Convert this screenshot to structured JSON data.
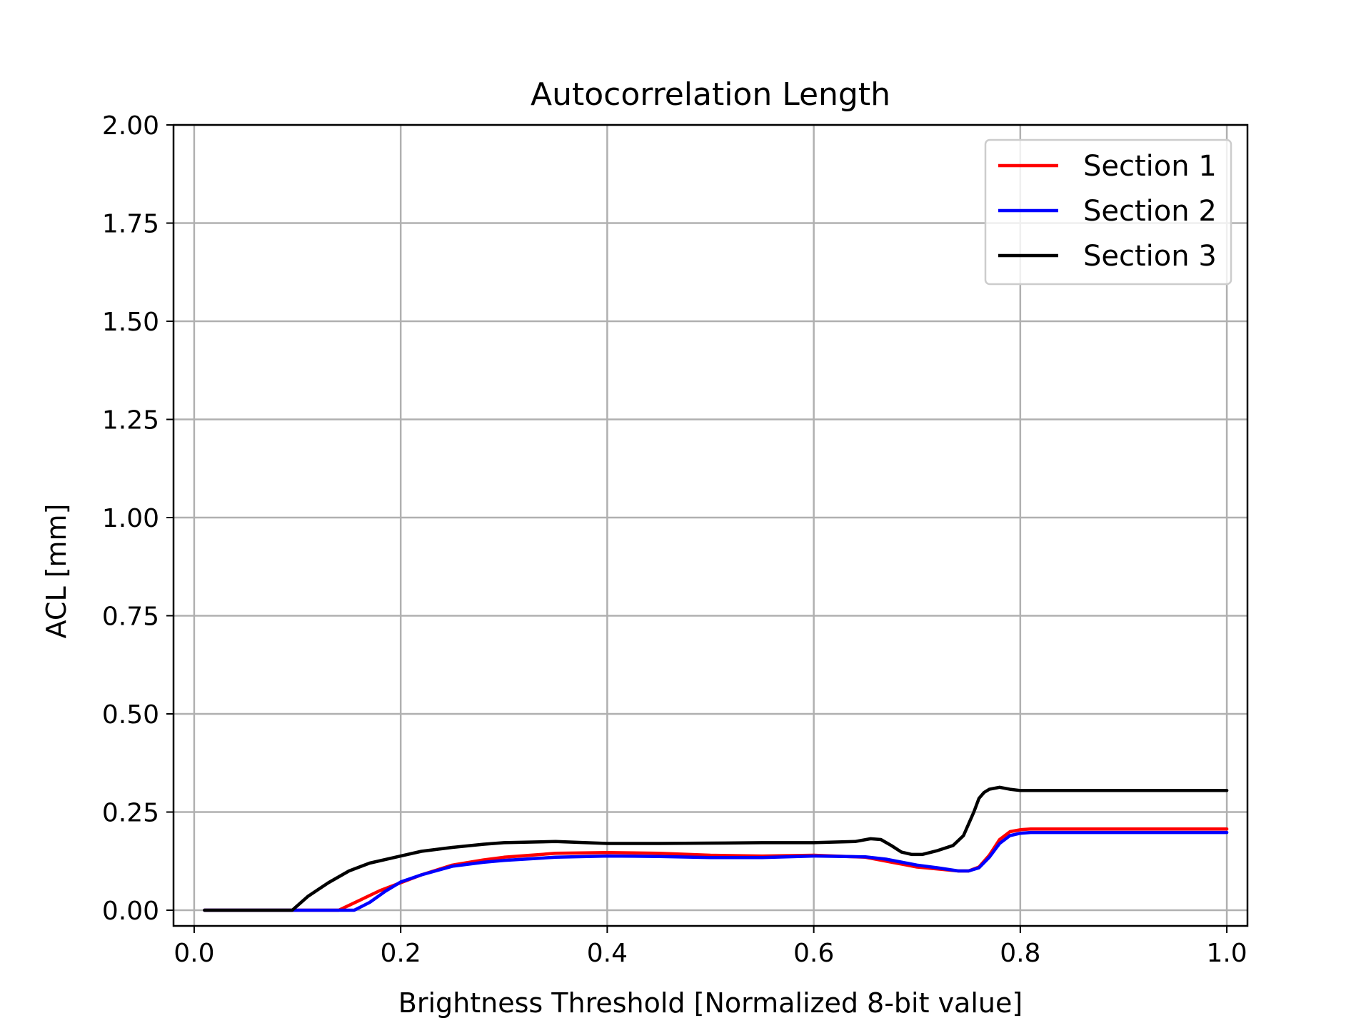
{
  "chart_data": {
    "type": "line",
    "title": "Autocorrelation Length",
    "xlabel": "Brightness Threshold [Normalized 8-bit value]",
    "ylabel": "ACL [mm]",
    "xlim": [
      -0.02,
      1.02
    ],
    "ylim": [
      -0.04,
      2.0
    ],
    "xticks": [
      {
        "value": 0.0,
        "label": "0.0"
      },
      {
        "value": 0.2,
        "label": "0.2"
      },
      {
        "value": 0.4,
        "label": "0.4"
      },
      {
        "value": 0.6,
        "label": "0.6"
      },
      {
        "value": 0.8,
        "label": "0.8"
      },
      {
        "value": 1.0,
        "label": "1.0"
      }
    ],
    "yticks": [
      {
        "value": 0.0,
        "label": "0.00"
      },
      {
        "value": 0.25,
        "label": "0.25"
      },
      {
        "value": 0.5,
        "label": "0.50"
      },
      {
        "value": 0.75,
        "label": "0.75"
      },
      {
        "value": 1.0,
        "label": "1.00"
      },
      {
        "value": 1.25,
        "label": "1.25"
      },
      {
        "value": 1.5,
        "label": "1.50"
      },
      {
        "value": 1.75,
        "label": "1.75"
      },
      {
        "value": 2.0,
        "label": "2.00"
      }
    ],
    "grid": true,
    "legend_position": "top-right",
    "series": [
      {
        "name": "Section 1",
        "color": "#ff0000",
        "x": [
          0.01,
          0.14,
          0.16,
          0.18,
          0.2,
          0.22,
          0.25,
          0.28,
          0.3,
          0.35,
          0.4,
          0.45,
          0.5,
          0.55,
          0.6,
          0.65,
          0.68,
          0.7,
          0.72,
          0.74,
          0.75,
          0.76,
          0.77,
          0.78,
          0.79,
          0.8,
          0.81,
          0.85,
          0.9,
          0.95,
          1.0
        ],
        "y": [
          0.0,
          0.0,
          0.025,
          0.05,
          0.07,
          0.09,
          0.115,
          0.128,
          0.135,
          0.145,
          0.147,
          0.145,
          0.14,
          0.138,
          0.14,
          0.135,
          0.12,
          0.11,
          0.105,
          0.1,
          0.1,
          0.11,
          0.14,
          0.18,
          0.2,
          0.205,
          0.207,
          0.207,
          0.207,
          0.207,
          0.207
        ]
      },
      {
        "name": "Section 2",
        "color": "#0000ff",
        "x": [
          0.01,
          0.155,
          0.17,
          0.185,
          0.2,
          0.22,
          0.25,
          0.28,
          0.3,
          0.35,
          0.4,
          0.45,
          0.5,
          0.55,
          0.6,
          0.65,
          0.67,
          0.7,
          0.72,
          0.74,
          0.75,
          0.76,
          0.77,
          0.78,
          0.79,
          0.8,
          0.81,
          0.85,
          0.9,
          0.95,
          1.0
        ],
        "y": [
          0.0,
          0.0,
          0.02,
          0.048,
          0.072,
          0.09,
          0.112,
          0.122,
          0.127,
          0.135,
          0.138,
          0.137,
          0.134,
          0.134,
          0.138,
          0.136,
          0.13,
          0.115,
          0.108,
          0.1,
          0.1,
          0.108,
          0.135,
          0.17,
          0.19,
          0.196,
          0.198,
          0.198,
          0.198,
          0.198,
          0.198
        ]
      },
      {
        "name": "Section 3",
        "color": "#000000",
        "x": [
          0.01,
          0.095,
          0.11,
          0.13,
          0.15,
          0.17,
          0.2,
          0.22,
          0.25,
          0.28,
          0.3,
          0.35,
          0.4,
          0.45,
          0.5,
          0.55,
          0.6,
          0.64,
          0.655,
          0.665,
          0.675,
          0.685,
          0.695,
          0.705,
          0.72,
          0.735,
          0.745,
          0.755,
          0.76,
          0.765,
          0.77,
          0.78,
          0.79,
          0.8,
          0.85,
          0.9,
          0.95,
          1.0
        ],
        "y": [
          0.0,
          0.0,
          0.035,
          0.07,
          0.1,
          0.12,
          0.138,
          0.15,
          0.16,
          0.168,
          0.172,
          0.175,
          0.17,
          0.17,
          0.171,
          0.172,
          0.172,
          0.175,
          0.182,
          0.18,
          0.165,
          0.148,
          0.142,
          0.142,
          0.152,
          0.165,
          0.19,
          0.25,
          0.285,
          0.3,
          0.308,
          0.313,
          0.308,
          0.305,
          0.305,
          0.305,
          0.305,
          0.305
        ]
      }
    ]
  }
}
